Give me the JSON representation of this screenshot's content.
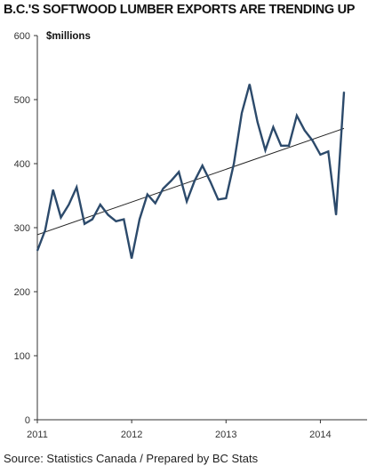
{
  "colors": {
    "series": "#2c4a6b",
    "trend": "#222222",
    "axis": "#333333",
    "grid": "#e6e6e6"
  },
  "chart_data": {
    "type": "line",
    "title": "B.C.'S SOFTWOOD LUMBER EXPORTS ARE TRENDING UP",
    "ylabel": "$millions",
    "source": "Source: Statistics Canada / Prepared by BC Stats",
    "ylim": [
      0,
      600
    ],
    "xlim": [
      2011.0,
      2014.42
    ],
    "y_ticks": [
      0,
      100,
      200,
      300,
      400,
      500,
      600
    ],
    "x_ticks": [
      2011,
      2012,
      2013,
      2014
    ],
    "grid": false,
    "series": [
      {
        "values": [
          {
            "date": "2011-01",
            "value": 264
          },
          {
            "date": "2011-02",
            "value": 296
          },
          {
            "date": "2011-03",
            "value": 359
          },
          {
            "date": "2011-04",
            "value": 316
          },
          {
            "date": "2011-05",
            "value": 336
          },
          {
            "date": "2011-06",
            "value": 363
          },
          {
            "date": "2011-07",
            "value": 306
          },
          {
            "date": "2011-08",
            "value": 313
          },
          {
            "date": "2011-09",
            "value": 336
          },
          {
            "date": "2011-10",
            "value": 320
          },
          {
            "date": "2011-11",
            "value": 310
          },
          {
            "date": "2011-12",
            "value": 313
          },
          {
            "date": "2012-01",
            "value": 252
          },
          {
            "date": "2012-02",
            "value": 313
          },
          {
            "date": "2012-03",
            "value": 352
          },
          {
            "date": "2012-04",
            "value": 338
          },
          {
            "date": "2012-05",
            "value": 361
          },
          {
            "date": "2012-06",
            "value": 373
          },
          {
            "date": "2012-07",
            "value": 387
          },
          {
            "date": "2012-08",
            "value": 341
          },
          {
            "date": "2012-09",
            "value": 373
          },
          {
            "date": "2012-10",
            "value": 397
          },
          {
            "date": "2012-11",
            "value": 372
          },
          {
            "date": "2012-12",
            "value": 344
          },
          {
            "date": "2013-01",
            "value": 346
          },
          {
            "date": "2013-02",
            "value": 400
          },
          {
            "date": "2013-03",
            "value": 479
          },
          {
            "date": "2013-04",
            "value": 524
          },
          {
            "date": "2013-05",
            "value": 465
          },
          {
            "date": "2013-06",
            "value": 421
          },
          {
            "date": "2013-07",
            "value": 457
          },
          {
            "date": "2013-08",
            "value": 428
          },
          {
            "date": "2013-09",
            "value": 428
          },
          {
            "date": "2013-10",
            "value": 475
          },
          {
            "date": "2013-11",
            "value": 452
          },
          {
            "date": "2013-12",
            "value": 436
          },
          {
            "date": "2014-01",
            "value": 414
          },
          {
            "date": "2014-02",
            "value": 419
          },
          {
            "date": "2014-03",
            "value": 320
          },
          {
            "date": "2014-04",
            "value": 512
          }
        ]
      }
    ],
    "trendline": {
      "start": {
        "date": "2011-01",
        "value": 289
      },
      "end": {
        "date": "2014-04",
        "value": 455
      }
    }
  }
}
